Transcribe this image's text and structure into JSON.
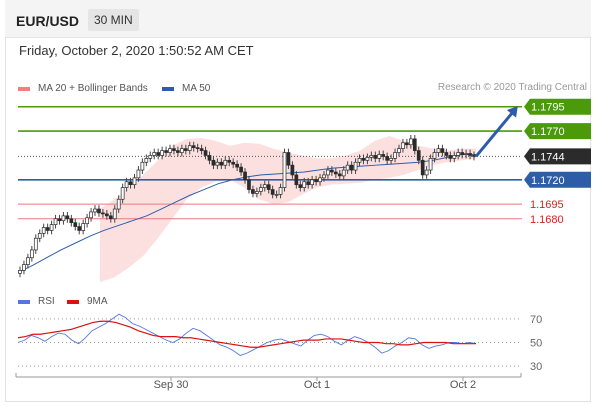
{
  "header": {
    "pair": "EUR/USD",
    "timeframe": "30 MIN"
  },
  "datetime": "Friday, October 2, 2020 1:50:52 AM CET",
  "legend": {
    "ma20": {
      "label": "MA 20 + Bollinger Bands",
      "color": "#f08080"
    },
    "ma50": {
      "label": "MA 50",
      "color": "#2e5da8"
    }
  },
  "credit": "Research © 2020 Trading Central",
  "rsi_legend": {
    "rsi": {
      "label": "RSI",
      "color": "#5577dd"
    },
    "ma9": {
      "label": "9MA",
      "color": "#dd1111"
    }
  },
  "chart_data": [
    {
      "type": "candlestick",
      "title": "EUR/USD 30 MIN",
      "x_ticks": [
        "Sep 30",
        "Oct 1",
        "Oct 2"
      ],
      "ylim": [
        1.1612,
        1.1805
      ],
      "levels": [
        {
          "value": 1.1795,
          "label": "1.1795",
          "style": "green-tag"
        },
        {
          "value": 1.177,
          "label": "1.1770",
          "style": "green-tag"
        },
        {
          "value": 1.1744,
          "label": "1.1744",
          "style": "current-price"
        },
        {
          "value": 1.172,
          "label": "1.1720",
          "style": "blue-tag"
        },
        {
          "value": 1.1695,
          "label": "1.1695",
          "style": "red-text"
        },
        {
          "value": 1.168,
          "label": "1.1680",
          "style": "red-text"
        }
      ],
      "projection": {
        "from": 1.1744,
        "to": 1.1795,
        "direction": "up",
        "color": "#2e5da8"
      },
      "close": [
        1.1627,
        1.1633,
        1.164,
        1.1648,
        1.166,
        1.1665,
        1.1671,
        1.1668,
        1.1674,
        1.168,
        1.1678,
        1.1683,
        1.168,
        1.1676,
        1.1672,
        1.1668,
        1.1675,
        1.1681,
        1.1687,
        1.169,
        1.1686,
        1.1685,
        1.1683,
        1.168,
        1.169,
        1.17,
        1.1712,
        1.1718,
        1.1715,
        1.1722,
        1.173,
        1.1738,
        1.1742,
        1.1745,
        1.1748,
        1.1745,
        1.175,
        1.1748,
        1.1752,
        1.175,
        1.1748,
        1.1752,
        1.175,
        1.1755,
        1.1753,
        1.1752,
        1.175,
        1.1745,
        1.174,
        1.1735,
        1.1738,
        1.1735,
        1.174,
        1.1738,
        1.1736,
        1.1733,
        1.1728,
        1.172,
        1.171,
        1.1706,
        1.1708,
        1.1712,
        1.1715,
        1.171,
        1.1705,
        1.1705,
        1.1712,
        1.1748,
        1.1735,
        1.1725,
        1.1715,
        1.1712,
        1.1718,
        1.1715,
        1.172,
        1.1718,
        1.1722,
        1.1725,
        1.173,
        1.1728,
        1.1726,
        1.1724,
        1.173,
        1.1735,
        1.173,
        1.1738,
        1.1742,
        1.174,
        1.1743,
        1.1745,
        1.1742,
        1.1746,
        1.1744,
        1.174,
        1.1742,
        1.1748,
        1.1752,
        1.1758,
        1.1756,
        1.1762,
        1.175,
        1.174,
        1.1725,
        1.173,
        1.1742,
        1.1748,
        1.1752,
        1.1748,
        1.1745,
        1.1742,
        1.1745,
        1.1748,
        1.1746,
        1.1747,
        1.1745,
        1.1744
      ],
      "ma50": [
        1.1625,
        1.1632,
        1.164,
        1.1648,
        1.1655,
        1.1662,
        1.1668,
        1.1673,
        1.1678,
        1.1683,
        1.169,
        1.1697,
        1.1704,
        1.171,
        1.1716,
        1.172,
        1.1723,
        1.1725,
        1.1726,
        1.1727,
        1.1728,
        1.173,
        1.1732,
        1.1733,
        1.1734,
        1.1735,
        1.1736,
        1.1737,
        1.1738,
        1.174,
        1.1743,
        1.1746,
        1.1746
      ],
      "bollinger_upper": [
        1.169,
        1.17,
        1.1712,
        1.1725,
        1.174,
        1.1755,
        1.1762,
        1.1763,
        1.176,
        1.1755,
        1.1758,
        1.1757,
        1.1752,
        1.1748,
        1.1745,
        1.1742,
        1.1742,
        1.1745,
        1.175,
        1.176,
        1.1765,
        1.176,
        1.1755,
        1.1752,
        1.175,
        1.1752,
        1.1752
      ],
      "bollinger_lower": [
        1.1615,
        1.162,
        1.163,
        1.1642,
        1.166,
        1.168,
        1.17,
        1.1712,
        1.1718,
        1.172,
        1.1712,
        1.17,
        1.1695,
        1.1697,
        1.1705,
        1.1712,
        1.1715,
        1.1716,
        1.1717,
        1.172,
        1.1722,
        1.1725,
        1.173,
        1.1735,
        1.1738,
        1.174,
        1.1742
      ]
    },
    {
      "type": "line",
      "title": "RSI",
      "ylim": [
        25,
        75
      ],
      "y_ticks": [
        "70",
        "50",
        "30"
      ],
      "guides": [
        70,
        50,
        30
      ],
      "series": [
        {
          "name": "RSI",
          "values": [
            50,
            52,
            56,
            54,
            51,
            55,
            58,
            57,
            52,
            49,
            54,
            60,
            63,
            66,
            70,
            74,
            71,
            66,
            64,
            61,
            58,
            55,
            52,
            50,
            53,
            58,
            62,
            60,
            56,
            52,
            48,
            46,
            43,
            39,
            41,
            44,
            47,
            50,
            52,
            53,
            51,
            49,
            47,
            52,
            56,
            57,
            55,
            51,
            48,
            52,
            55,
            53,
            50,
            46,
            41,
            43,
            47,
            50,
            54,
            53,
            48,
            45,
            47,
            48,
            50,
            50,
            49,
            50,
            49
          ]
        },
        {
          "name": "9MA",
          "values": [
            54,
            55,
            57,
            57,
            58,
            59,
            60,
            61,
            63,
            65,
            67,
            68,
            68,
            67,
            65,
            63,
            60,
            58,
            56,
            55,
            55,
            55,
            54,
            54,
            53,
            52,
            51,
            50,
            49,
            48,
            47,
            46,
            46,
            47,
            48,
            49,
            50,
            51,
            52,
            52,
            52,
            53,
            53,
            53,
            52,
            51,
            50,
            50,
            50,
            49,
            49,
            48,
            48,
            49,
            50,
            50,
            50,
            50,
            49,
            49,
            49,
            49
          ]
        }
      ]
    }
  ]
}
